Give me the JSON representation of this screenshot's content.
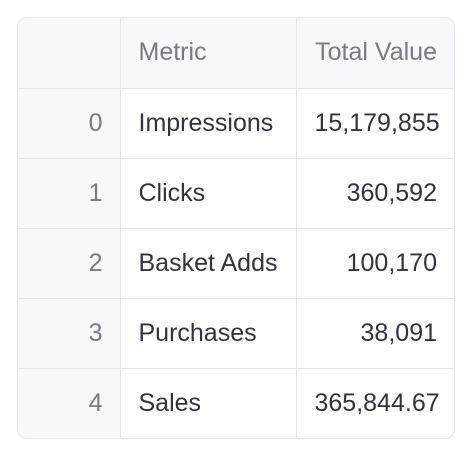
{
  "table": {
    "columns": [
      "",
      "Metric",
      "Total Value"
    ],
    "rows": [
      {
        "index": "0",
        "metric": "Impressions",
        "total_value": "15,179,855"
      },
      {
        "index": "1",
        "metric": "Clicks",
        "total_value": "360,592"
      },
      {
        "index": "2",
        "metric": "Basket Adds",
        "total_value": "100,170"
      },
      {
        "index": "3",
        "metric": "Purchases",
        "total_value": "38,091"
      },
      {
        "index": "4",
        "metric": "Sales",
        "total_value": "365,844.67"
      }
    ]
  },
  "colors": {
    "border": "#e6e7ea",
    "header_bg": "#f7f8fa",
    "muted_text": "#787a84",
    "body_text": "#31333f"
  }
}
